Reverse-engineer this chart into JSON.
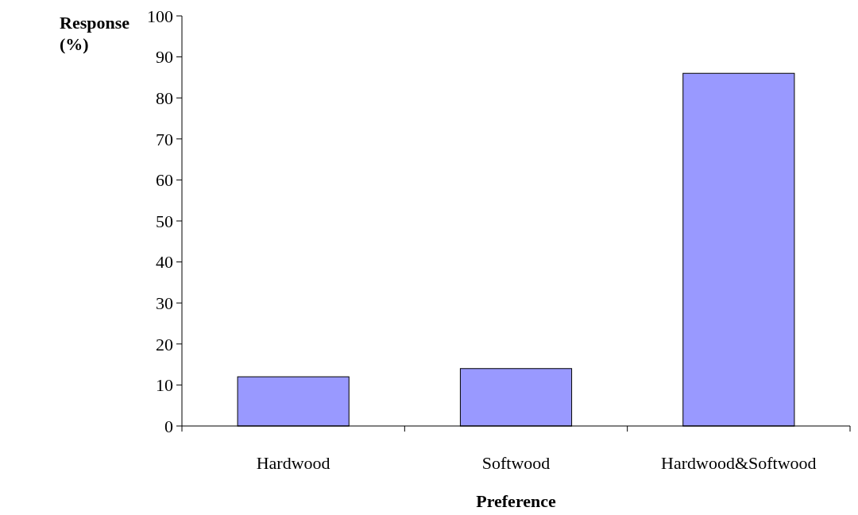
{
  "chart_data": {
    "type": "bar",
    "xlabel": "Preference",
    "ylabel": "Response (%)",
    "categories": [
      "Hardwood",
      "Softwood",
      "Hardwood&Softwood"
    ],
    "values": [
      12,
      14,
      86
    ],
    "color": "#9999ff",
    "ylim": [
      0,
      100
    ],
    "yticks": [
      0,
      10,
      20,
      30,
      40,
      50,
      60,
      70,
      80,
      90,
      100
    ],
    "grid": false
  }
}
